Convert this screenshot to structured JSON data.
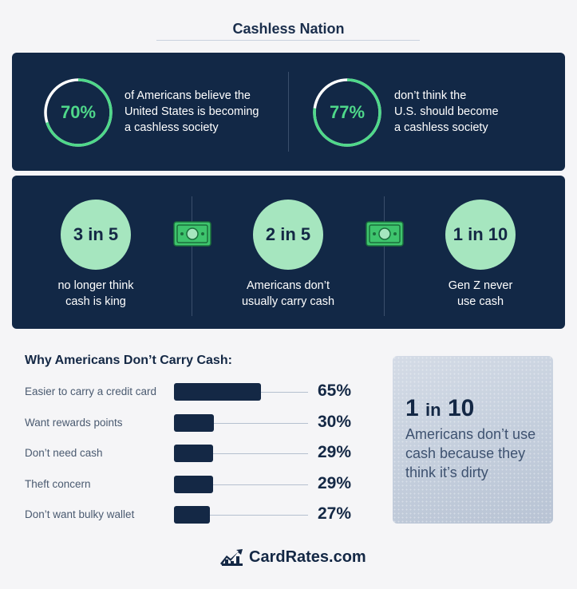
{
  "title": "Cashless Nation",
  "rings": [
    {
      "value": "70%",
      "fraction": 0.7,
      "line1": "of Americans believe the",
      "line2": "United States is becoming",
      "line3": "a cashless society"
    },
    {
      "value": "77%",
      "fraction": 0.77,
      "line1": "don’t think the",
      "line2": "U.S. should become",
      "line3": "a cashless society"
    }
  ],
  "bubbles": [
    {
      "value": "3 in 5",
      "line1": "no longer think",
      "line2": "cash is king"
    },
    {
      "value": "2 in 5",
      "line1": "Americans don’t",
      "line2": "usually carry cash"
    },
    {
      "value": "1 in 10",
      "line1": "Gen Z never",
      "line2": "use cash"
    }
  ],
  "icons": {
    "money": "money-bill-icon",
    "logo": "chart-trend-icon"
  },
  "chart_data": {
    "type": "bar",
    "orientation": "horizontal",
    "title": "Why Americans Don’t Carry Cash:",
    "categories": [
      "Easier to carry a credit card",
      "Want rewards points",
      "Don’t need cash",
      "Theft concern",
      "Don’t want bulky wallet"
    ],
    "values": [
      65,
      30,
      29,
      29,
      27
    ],
    "value_labels": [
      "65%",
      "30%",
      "29%",
      "29%",
      "27%"
    ],
    "xlim": [
      0,
      100
    ],
    "grid": false,
    "legend": "none"
  },
  "callout": {
    "big_num": "1",
    "big_in": "in",
    "big_den": "10",
    "text": "Americans don’t use cash because they think it’s dirty"
  },
  "brand": "CardRates.com",
  "colors": {
    "navy": "#122846",
    "accent_green": "#4fd88a",
    "bubble_green": "#a6e6bf",
    "money_green": "#3ec46d"
  }
}
